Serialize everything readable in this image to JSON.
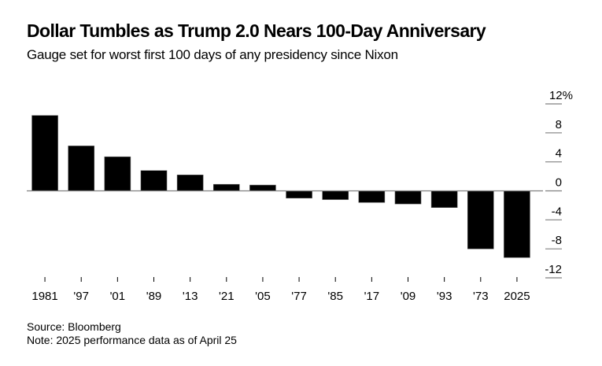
{
  "header": {
    "title": "Dollar Tumbles as Trump 2.0 Nears 100-Day Anniversary",
    "subtitle": "Gauge set for worst first 100 days of any presidency since Nixon"
  },
  "footer": {
    "source": "Source: Bloomberg",
    "note": "Note: 2025 performance data as of April 25"
  },
  "colors": {
    "bar": "#000000",
    "axis": "#808080"
  },
  "chart_data": {
    "type": "bar",
    "title": "Dollar Tumbles as Trump 2.0 Nears 100-Day Anniversary",
    "subtitle": "Gauge set for worst first 100 days of any presidency since Nixon",
    "xlabel": "",
    "ylabel": "",
    "categories": [
      "1981",
      "'97",
      "'01",
      "'89",
      "'13",
      "'21",
      "'05",
      "'77",
      "'85",
      "'17",
      "'09",
      "'93",
      "'73",
      "2025"
    ],
    "values": [
      10.4,
      6.2,
      4.7,
      2.8,
      2.2,
      0.9,
      0.8,
      -1.0,
      -1.2,
      -1.6,
      -1.8,
      -2.3,
      -8.0,
      -9.2
    ],
    "ylim": [
      -12,
      12
    ],
    "yticks": [
      12,
      8,
      4,
      0,
      -4,
      -8,
      -12
    ],
    "ytick_labels": [
      "12%",
      "8",
      "4",
      "0",
      "-4",
      "-8",
      "-12"
    ],
    "y_axis_side": "right",
    "grid": false,
    "legend": "none"
  }
}
